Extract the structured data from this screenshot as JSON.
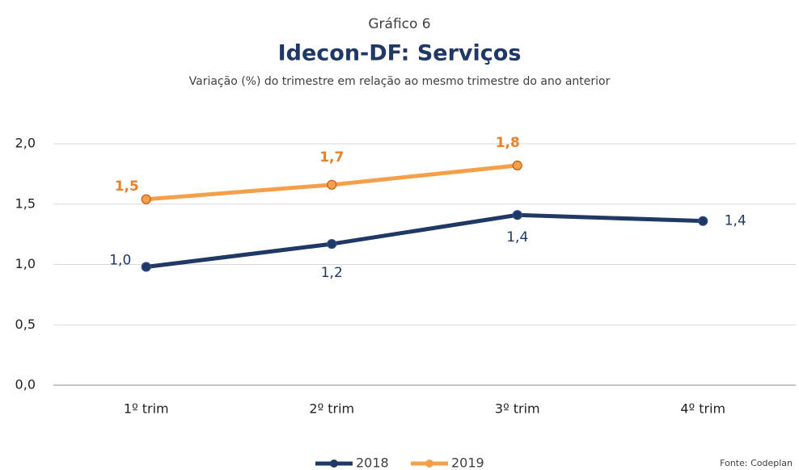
{
  "chart_data": {
    "type": "line",
    "kicker": "Gráfico 6",
    "title": "Idecon-DF: Serviços",
    "subtitle": "Variação (%) do trimestre em relação ao mesmo trimestre do ano anterior",
    "source": "Fonte: Codeplan",
    "categories": [
      "1º trim",
      "2º trim",
      "3º trim",
      "4º trim"
    ],
    "series": [
      {
        "name": "2018",
        "color": "#1f3864",
        "label_color": "#1f3864",
        "values": [
          0.98,
          1.17,
          1.41,
          1.36
        ],
        "value_labels": [
          "1,0",
          "1,2",
          "1,4",
          "1,4"
        ]
      },
      {
        "name": "2019",
        "color": "#f4a04b",
        "label_color": "#e8822a",
        "values": [
          1.54,
          1.66,
          1.82,
          null
        ],
        "value_labels": [
          "1,5",
          "1,7",
          "1,8",
          null
        ]
      }
    ],
    "ylim": [
      0,
      2
    ],
    "yticks": [
      {
        "value": 0,
        "label": "0,0"
      },
      {
        "value": 0.5,
        "label": "0,5"
      },
      {
        "value": 1,
        "label": "1,0"
      },
      {
        "value": 1.5,
        "label": "1,5"
      },
      {
        "value": 2,
        "label": "2,0"
      }
    ],
    "grid": true
  }
}
